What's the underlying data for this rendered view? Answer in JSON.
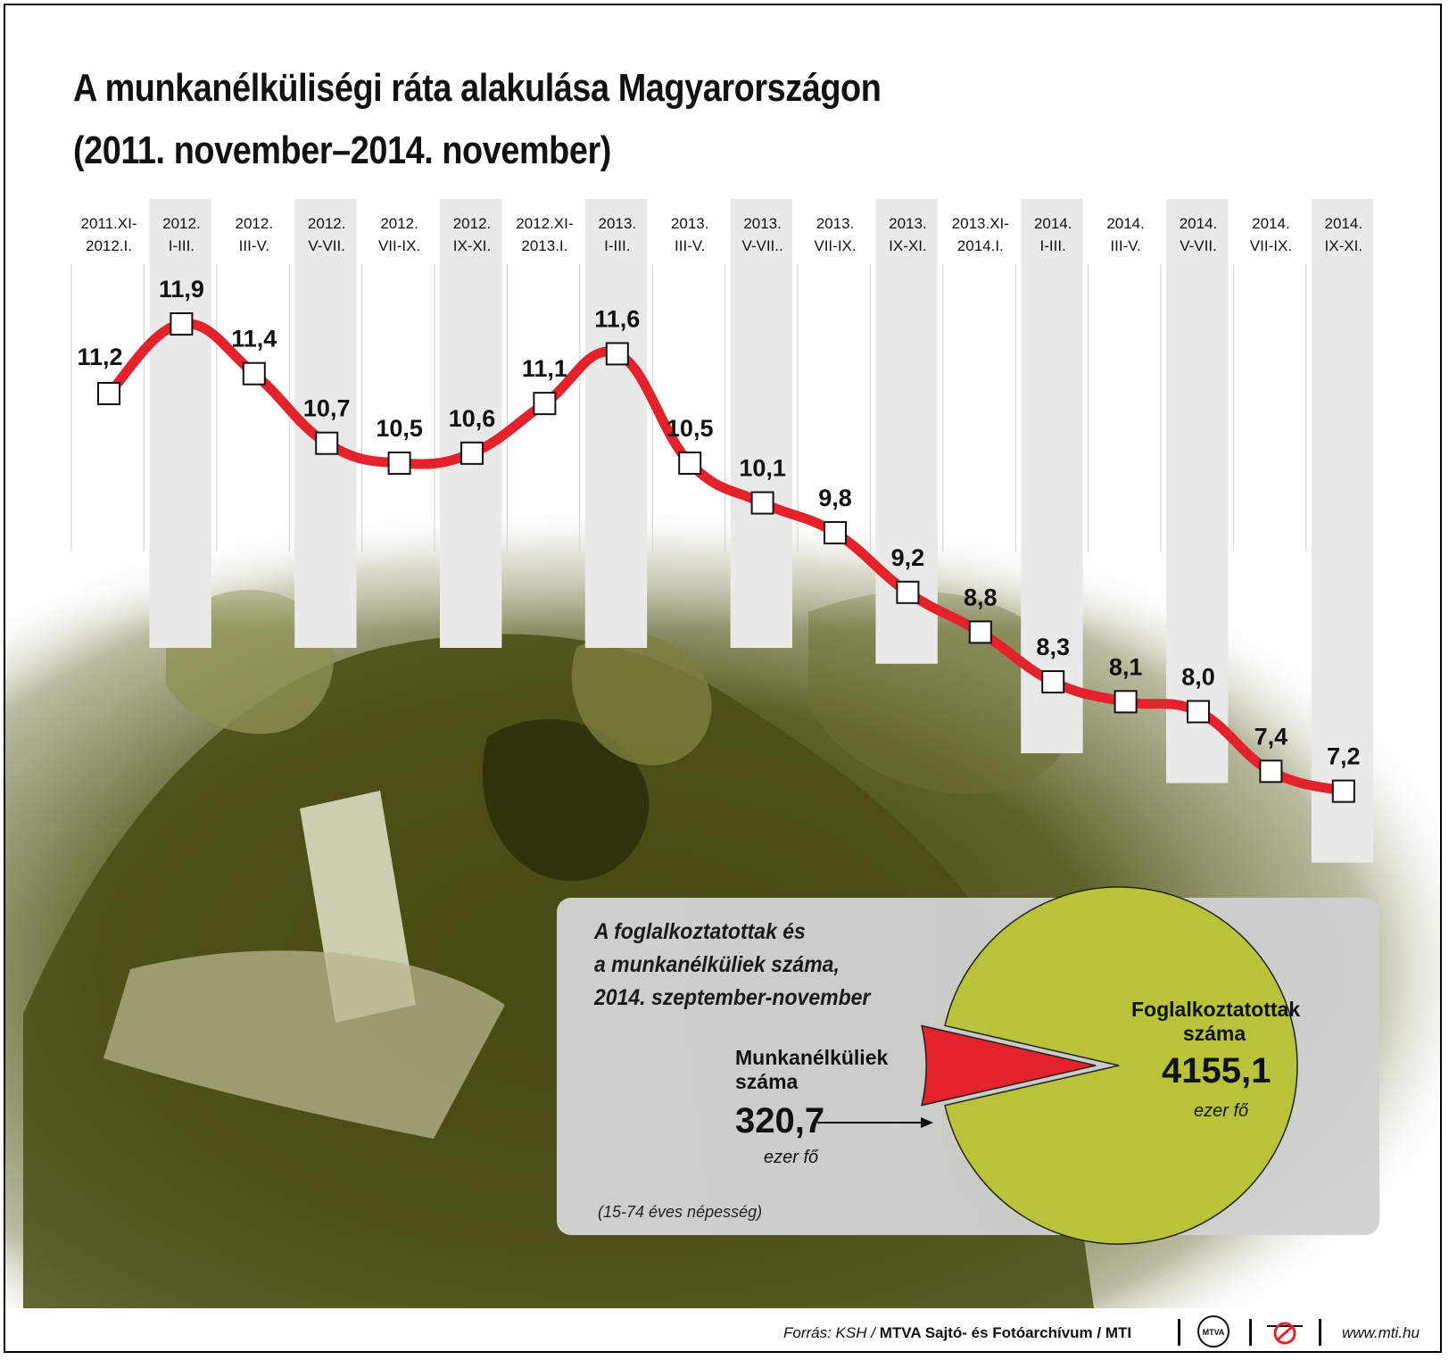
{
  "title": {
    "line1": "A munkanélküliségi ráta alakulása Magyarországon",
    "line2": "(2011. november–2014. november)"
  },
  "colors": {
    "line": "#e3222b",
    "band": "#e9e9e9",
    "pie_main": "#b9c33a",
    "pie_slice": "#e3222b",
    "photo": "#5c5e1f"
  },
  "chart_data": [
    {
      "type": "line",
      "categories": [
        [
          "2011.XI-",
          "2012.I."
        ],
        [
          "2012.",
          "I-III."
        ],
        [
          "2012.",
          "III-V."
        ],
        [
          "2012.",
          "V-VII."
        ],
        [
          "2012.",
          "VII-IX."
        ],
        [
          "2012.",
          "IX-XI."
        ],
        [
          "2012.XI-",
          "2013.I."
        ],
        [
          "2013.",
          "I-III."
        ],
        [
          "2013.",
          "III-V."
        ],
        [
          "2013.",
          "V-VII.."
        ],
        [
          "2013.",
          "VII-IX."
        ],
        [
          "2013.",
          "IX-XI."
        ],
        [
          "2013.XI-",
          "2014.I."
        ],
        [
          "2014.",
          "I-III."
        ],
        [
          "2014.",
          "III-V."
        ],
        [
          "2014.",
          "V-VII."
        ],
        [
          "2014.",
          "VII-IX."
        ],
        [
          "2014.",
          "IX-XI."
        ]
      ],
      "values": [
        11.2,
        11.9,
        11.4,
        10.7,
        10.5,
        10.6,
        11.1,
        11.6,
        10.5,
        10.1,
        9.8,
        9.2,
        8.8,
        8.3,
        8.1,
        8.0,
        7.4,
        7.2
      ],
      "value_labels": [
        "11,2",
        "11,9",
        "11,4",
        "10,7",
        "10,5",
        "10,6",
        "11,1",
        "11,6",
        "10,5",
        "10,1",
        "9,8",
        "9,2",
        "8,8",
        "8,3",
        "8,1",
        "8,0",
        "7,4",
        "7,2"
      ],
      "grid": false,
      "legend": "none"
    },
    {
      "type": "pie",
      "title": [
        "A foglalkoztatottak és",
        "a munkanélküliek száma,",
        "2014. szeptember-november"
      ],
      "slices": [
        {
          "label": [
            "Foglalkoztatottak",
            "száma"
          ],
          "value": 4155.1,
          "value_label": "4155,1",
          "unit": "ezer fő"
        },
        {
          "label": [
            "Munkanélküliek",
            "száma"
          ],
          "value": 320.7,
          "value_label": "320,7",
          "unit": "ezer fő"
        }
      ],
      "note": "(15-74 éves népesség)"
    }
  ],
  "footer": {
    "source_prefix": "Forrás: KSH /",
    "source_bold": "MTVA Sajtó- és Fotóarchívum / MTI",
    "logo_text": "MTVA",
    "website": "www.mti.hu"
  }
}
